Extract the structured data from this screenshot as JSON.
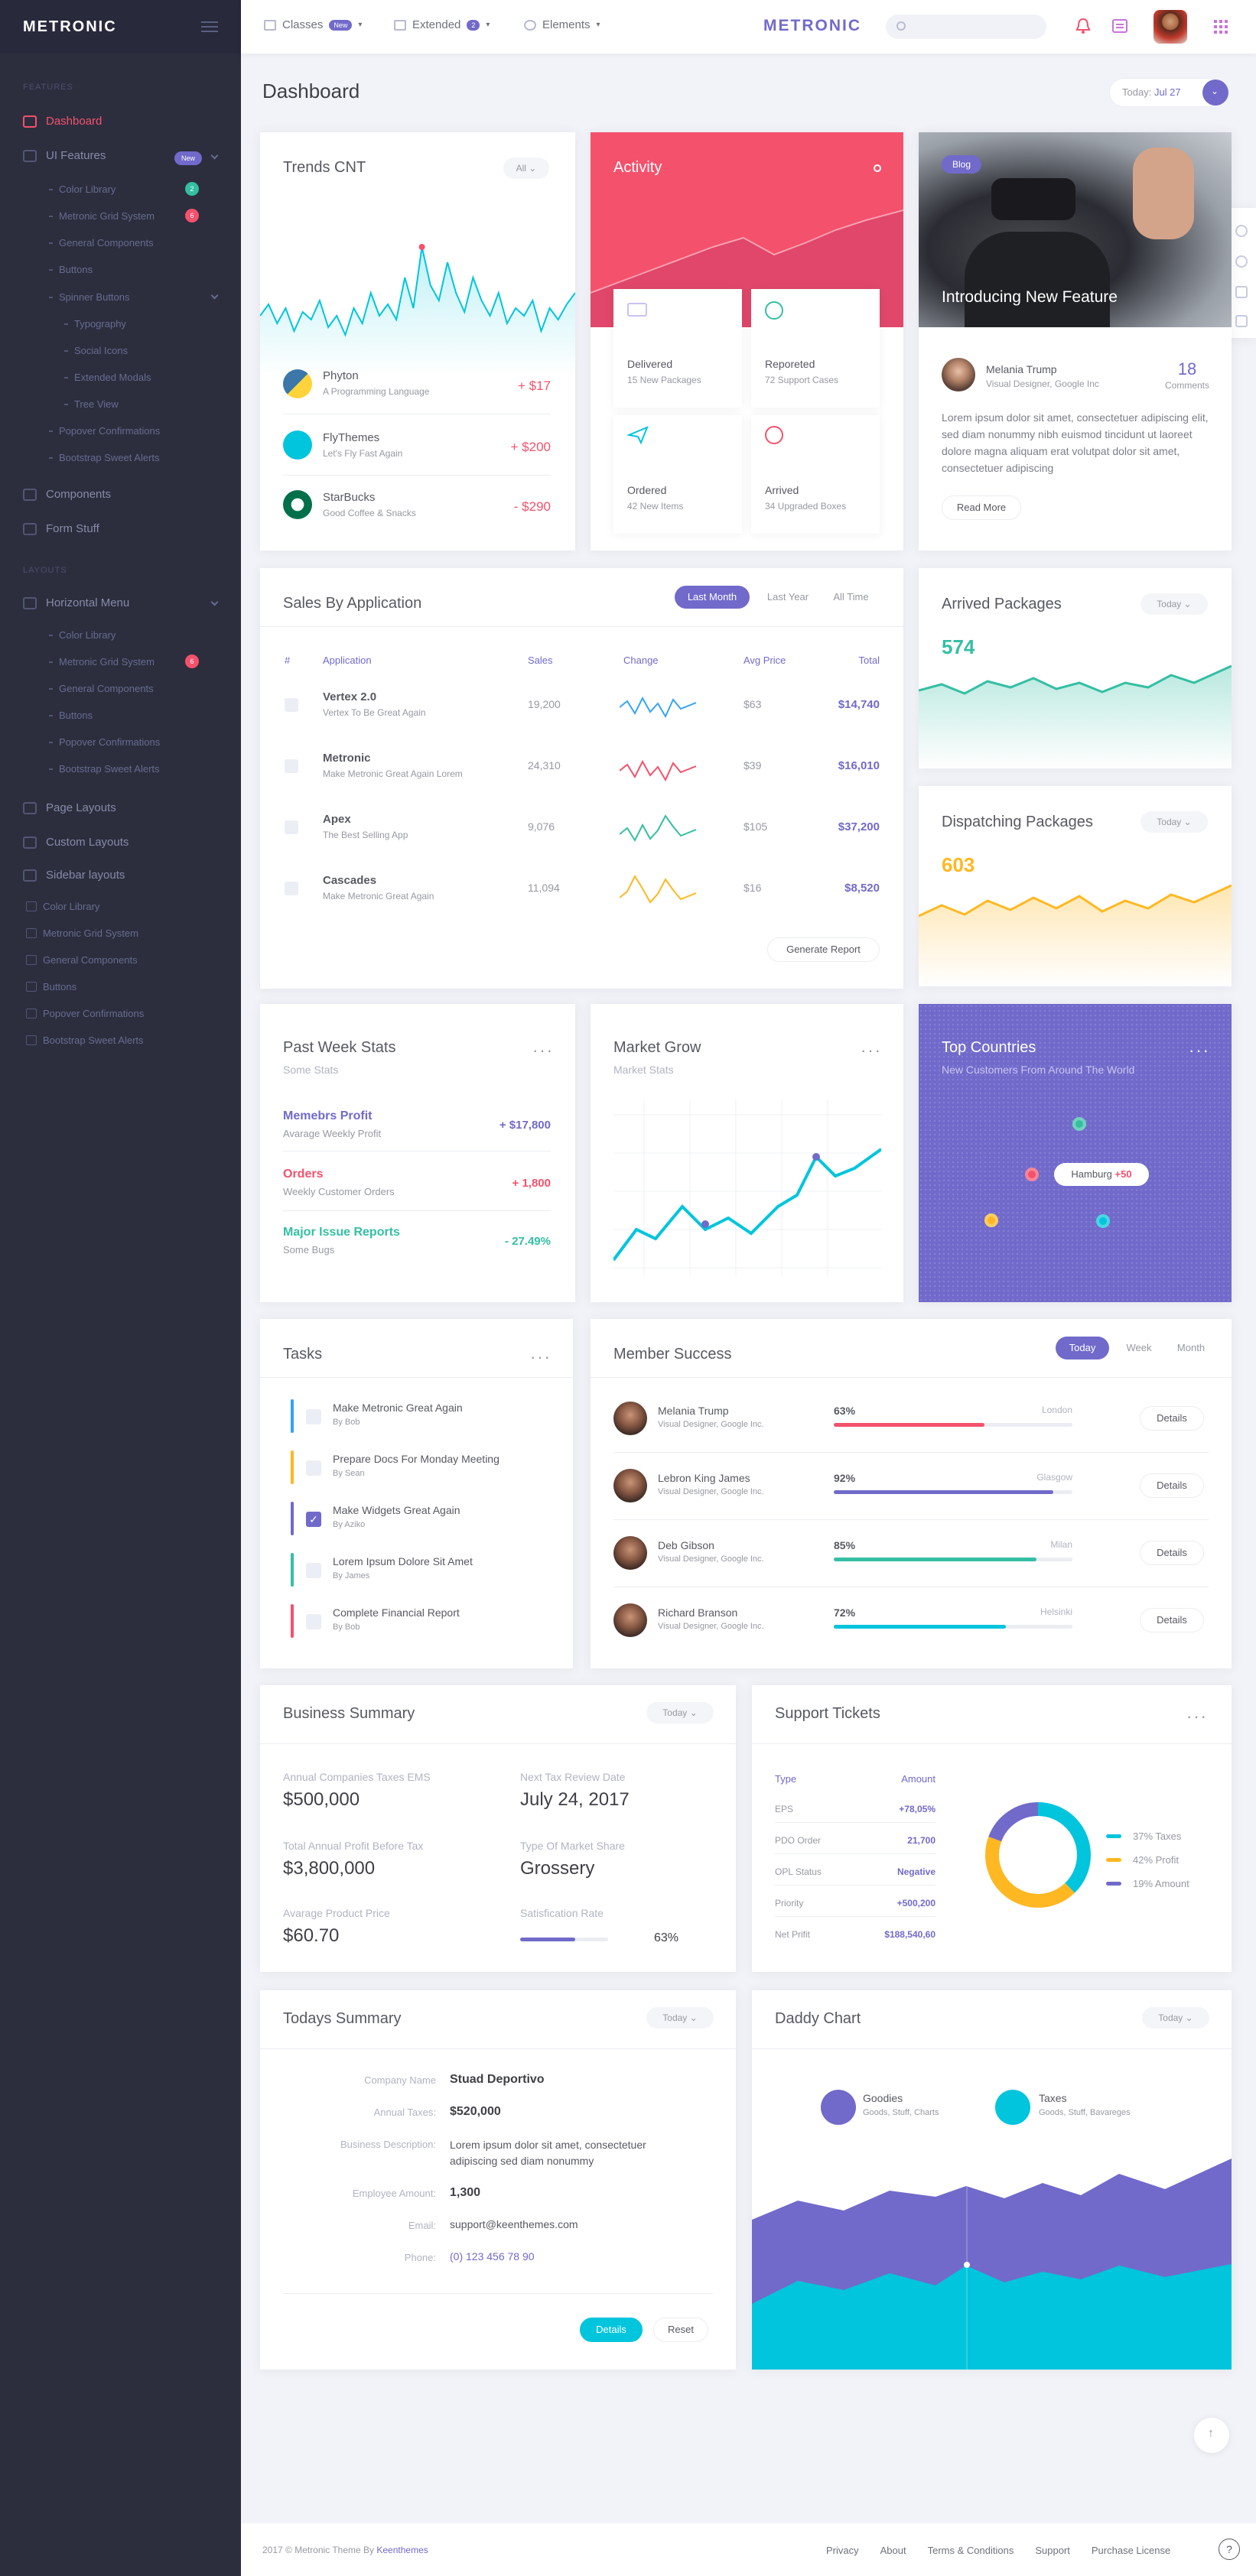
{
  "sidebar": {
    "brand": "METRONIC",
    "sec_features": "FEATURES",
    "sec_layouts": "LAYOUTS",
    "dashboard": "Dashboard",
    "ui_features": "UI Features",
    "ui_badge": "New",
    "sub1": [
      {
        "label": "Color Library",
        "badge": "2"
      },
      {
        "label": "Metronic Grid System",
        "badge": "6"
      },
      {
        "label": "General Components"
      },
      {
        "label": "Buttons"
      },
      {
        "label": "Spinner Buttons"
      }
    ],
    "sub_spinner": [
      "Typography",
      "Social Icons",
      "Extended Modals",
      "Tree View"
    ],
    "sub1b": [
      "Popover Confirmations",
      "Bootstrap Sweet Alerts"
    ],
    "components": "Components",
    "form_stuff": "Form Stuff",
    "horizontal_menu": "Horizontal Menu",
    "sub2": [
      {
        "label": "Color Library"
      },
      {
        "label": "Metronic Grid System",
        "badge": "6"
      },
      {
        "label": "General Components"
      },
      {
        "label": "Buttons"
      },
      {
        "label": "Popover Confirmations"
      },
      {
        "label": "Bootstrap Sweet Alerts"
      }
    ],
    "page_layouts": "Page Layouts",
    "custom_layouts": "Custom Layouts",
    "sidebar_layouts": "Sidebar layouts",
    "sub3": [
      "Color Library",
      "Metronic Grid System",
      "General Components",
      "Buttons",
      "Popover Confirmations",
      "Bootstrap Sweet Alerts"
    ]
  },
  "header": {
    "classes": "Classes",
    "classes_badge": "New",
    "extended": "Extended",
    "extended_badge": "2",
    "elements": "Elements",
    "logo": "METRONIC"
  },
  "page": {
    "title": "Dashboard",
    "today_label": "Today:",
    "today_value": "Jul 27"
  },
  "trends": {
    "title": "Trends CNT",
    "filter": "All",
    "items": [
      {
        "name": "Phyton",
        "sub": "A Programming Language",
        "value": "+ $17"
      },
      {
        "name": "FlyThemes",
        "sub": "Let's Fly Fast Again",
        "value": "+ $200"
      },
      {
        "name": "StarBucks",
        "sub": "Good Coffee & Snacks",
        "value": "- $290"
      }
    ]
  },
  "activity": {
    "title": "Activity",
    "tiles": [
      {
        "name": "Delivered",
        "sub": "15 New Packages"
      },
      {
        "name": "Reporeted",
        "sub": "72 Support Cases"
      },
      {
        "name": "Ordered",
        "sub": "42 New Items"
      },
      {
        "name": "Arrived",
        "sub": "34 Upgraded Boxes"
      }
    ]
  },
  "blog": {
    "badge": "Blog",
    "title": "Introducing New Feature",
    "author": "Melania Trump",
    "author_role": "Visual Designer, Google Inc",
    "comments_count": "18",
    "comments_label": "Comments",
    "body": "Lorem ipsum dolor sit amet, consectetuer adipiscing elit, sed diam nonummy nibh euismod tincidunt ut laoreet dolore magna aliquam erat volutpat dolor sit amet, consectetuer adipiscing",
    "read_more": "Read More"
  },
  "sales": {
    "title": "Sales By Application",
    "tabs": [
      "Last Month",
      "Last Year",
      "All Time"
    ],
    "columns": [
      "#",
      "Application",
      "Sales",
      "Change",
      "Avg Price",
      "Total"
    ],
    "rows": [
      {
        "app": "Vertex 2.0",
        "sub": "Vertex To Be Great Again",
        "sales": "19,200",
        "avg": "$63",
        "total": "$14,740",
        "color": "#36a3f7"
      },
      {
        "app": "Metronic",
        "sub": "Make Metronic Great Again Lorem",
        "sales": "24,310",
        "avg": "$39",
        "total": "$16,010",
        "color": "#f4516c"
      },
      {
        "app": "Apex",
        "sub": "The Best Selling App",
        "sales": "9,076",
        "avg": "$105",
        "total": "$37,200",
        "color": "#34bfa3"
      },
      {
        "app": "Cascades",
        "sub": "Make Metronic Great Again",
        "sales": "11,094",
        "avg": "$16",
        "total": "$8,520",
        "color": "#ffb822"
      }
    ],
    "button": "Generate Report"
  },
  "arrived": {
    "title": "Arrived Packages",
    "filter": "Today",
    "value": "574",
    "color": "#34bfa3"
  },
  "dispatching": {
    "title": "Dispatching Packages",
    "filter": "Today",
    "value": "603",
    "color": "#ffb822"
  },
  "past_week": {
    "title": "Past Week Stats",
    "sub": "Some Stats",
    "items": [
      {
        "name": "Memebrs Profit",
        "sub": "Avarage Weekly Profit",
        "value": "+ $17,800"
      },
      {
        "name": "Orders",
        "sub": "Weekly Customer Orders",
        "value": "+ 1,800"
      },
      {
        "name": "Major Issue Reports",
        "sub": "Some Bugs",
        "value": "- 27.49%"
      }
    ]
  },
  "market": {
    "title": "Market Grow",
    "sub": "Market Stats"
  },
  "countries": {
    "title": "Top Countries",
    "sub": "New Customers From Around The World",
    "tooltip_city": "Hamburg",
    "tooltip_value": "+50"
  },
  "tasks": {
    "title": "Tasks",
    "items": [
      {
        "name": "Make Metronic Great Again",
        "by": "By Bob",
        "color": "#36a3f7",
        "checked": false
      },
      {
        "name": "Prepare Docs For Monday Meeting",
        "by": "By Sean",
        "color": "#ffb822",
        "checked": false
      },
      {
        "name": "Make Widgets Great Again",
        "by": "By Aziko",
        "color": "#716aca",
        "checked": true
      },
      {
        "name": "Lorem Ipsum Dolore Sit Amet",
        "by": "By James",
        "color": "#34bfa3",
        "checked": false
      },
      {
        "name": "Complete Financial Report",
        "by": "By Bob",
        "color": "#f4516c",
        "checked": false
      }
    ]
  },
  "members": {
    "title": "Member Success",
    "tabs": [
      "Today",
      "Week",
      "Month"
    ],
    "button": "Details",
    "items": [
      {
        "name": "Melania Trump",
        "role": "Visual Designer, Google Inc.",
        "pct": "63%",
        "city": "London",
        "progress": 0.63,
        "color": "#f4516c"
      },
      {
        "name": "Lebron King James",
        "role": "Visual Designer, Google Inc.",
        "pct": "92%",
        "city": "Glasgow",
        "progress": 0.92,
        "color": "#716aca"
      },
      {
        "name": "Deb Gibson",
        "role": "Visual Designer, Google Inc.",
        "pct": "85%",
        "city": "Milan",
        "progress": 0.85,
        "color": "#34bfa3"
      },
      {
        "name": "Richard Branson",
        "role": "Visual Designer, Google Inc.",
        "pct": "72%",
        "city": "Helsinki",
        "progress": 0.72,
        "color": "#00c5dc"
      }
    ]
  },
  "business": {
    "title": "Business Summary",
    "filter": "Today",
    "f1_label": "Annual Companies Taxes EMS",
    "f1_value": "$500,000",
    "f2_label": "Next Tax Review Date",
    "f2_value": "July 24, 2017",
    "f3_label": "Total Annual Profit Before Tax",
    "f3_value": "$3,800,000",
    "f4_label": "Type Of Market Share",
    "f4_value": "Grossery",
    "f5_label": "Avarage Product Price",
    "f5_value": "$60.70",
    "f6_label": "Satisfication Rate",
    "f6_value": "63%",
    "f6_progress": 0.63
  },
  "support": {
    "title": "Support Tickets",
    "col_type": "Type",
    "col_amount": "Amount",
    "rows": [
      {
        "type": "EPS",
        "amount": "+78,05%"
      },
      {
        "type": "PDO Order",
        "amount": "21,700"
      },
      {
        "type": "OPL Status",
        "amount": "Negative"
      },
      {
        "type": "Priority",
        "amount": "+500,200"
      },
      {
        "type": "Net Prifit",
        "amount": "$188,540,60"
      }
    ],
    "legend": [
      {
        "label": "37% Taxes",
        "color": "#00c5dc",
        "value": 37
      },
      {
        "label": "42% Profit",
        "color": "#ffb822",
        "value": 42
      },
      {
        "label": "19% Amount",
        "color": "#716aca",
        "value": 19
      }
    ]
  },
  "todays": {
    "title": "Todays Summary",
    "filter": "Today",
    "rows": [
      {
        "label": "Company Name",
        "value": "Stuad Deportivo"
      },
      {
        "label": "Annual Taxes:",
        "value": "$520,000"
      },
      {
        "label": "Business Description:",
        "value": "Lorem ipsum dolor sit amet, consectetuer adipiscing sed diam nonummy"
      },
      {
        "label": "Employee Amount:",
        "value": "1,300"
      },
      {
        "label": "Email:",
        "value": "support@keenthemes.com"
      },
      {
        "label": "Phone:",
        "value": "(0) 123 456 78 90"
      }
    ],
    "btn_details": "Details",
    "btn_reset": "Reset"
  },
  "daddy": {
    "title": "Daddy Chart",
    "filter": "Today",
    "l1_name": "Goodies",
    "l1_sub": "Goods, Stuff, Charts",
    "l2_name": "Taxes",
    "l2_sub": "Goods, Stuff, Bavareges"
  },
  "footer": {
    "copyright": "2017 © Metronic Theme By",
    "link": "Keenthemes",
    "links": [
      "Privacy",
      "About",
      "Terms & Conditions",
      "Support",
      "Purchase License"
    ]
  },
  "colors": {
    "brand": "#716aca",
    "danger": "#f4516c",
    "success": "#34bfa3",
    "warning": "#ffb822",
    "info": "#00c5dc",
    "sidebar": "#2c2e3e"
  }
}
